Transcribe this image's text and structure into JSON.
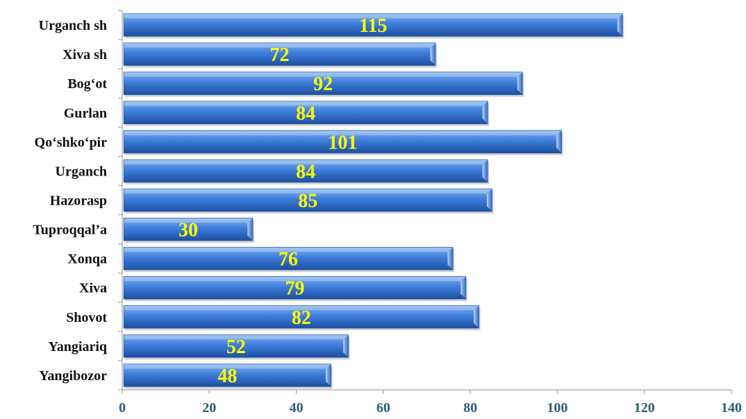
{
  "chart_data": {
    "type": "bar",
    "orientation": "horizontal",
    "categories": [
      "Urganch sh",
      "Xiva sh",
      "Bog‘ot",
      "Gurlan",
      "Qo‘shko‘pir",
      "Urganch",
      "Hazorasp",
      "Tuproqqal’a",
      "Xonqa",
      "Xiva",
      "Shovot",
      "Yangiariq",
      "Yangibozor"
    ],
    "values": [
      115,
      72,
      92,
      84,
      101,
      84,
      85,
      30,
      76,
      79,
      82,
      52,
      48
    ],
    "xlim": [
      0,
      140
    ],
    "xticks": [
      0,
      20,
      40,
      60,
      80,
      100,
      120,
      140
    ],
    "xtick_labels": [
      "0",
      "20",
      "40",
      "60",
      "80",
      "100",
      "120",
      "140"
    ],
    "title": "",
    "xlabel": "",
    "ylabel": "",
    "grid": false,
    "legend": "none",
    "colors": {
      "bar_top": "#6ea6ea",
      "bar_mid": "#3b78d8",
      "bar_bottom": "#1c4f9e",
      "bar_edge": "#c9dcf5",
      "data_label": "#ffff00",
      "category_label": "#111111",
      "tick_label": "#2f5d78",
      "axis": "#a6a6a6"
    }
  }
}
